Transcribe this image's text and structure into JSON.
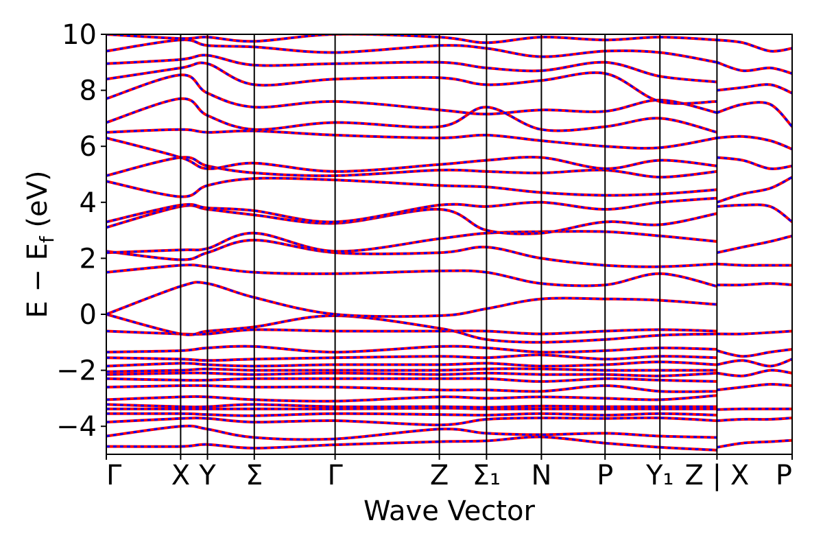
{
  "chart_data": {
    "type": "line",
    "title": "",
    "xlabel": "Wave Vector",
    "ylabel": "E − E",
    "ylabel_sub": "f",
    "ylabel_unit": " (eV)",
    "ylim": [
      -5,
      10
    ],
    "yticks": [
      -4,
      -2,
      0,
      2,
      4,
      6,
      8,
      10
    ],
    "ytick_labels": [
      "−4",
      "−2",
      "0",
      "2",
      "4",
      "6",
      "8",
      "10"
    ],
    "xlim": [
      0,
      12.5
    ],
    "kpoints": [
      {
        "label": "Γ",
        "x": 0.0
      },
      {
        "label": "X",
        "x": 1.355
      },
      {
        "label": "Y",
        "x": 1.844
      },
      {
        "label": "Σ",
        "x": 2.697
      },
      {
        "label": "Γ",
        "x": 4.17
      },
      {
        "label": "Z",
        "x": 6.07
      },
      {
        "label": "Σ₁",
        "x": 6.93
      },
      {
        "label": "N",
        "x": 7.93
      },
      {
        "label": "P",
        "x": 9.09
      },
      {
        "label": "Y₁",
        "x": 10.09
      },
      {
        "label": "Z | X",
        "x": 11.13
      },
      {
        "label": "P",
        "x": 12.5
      }
    ],
    "grid": false,
    "legend": "none",
    "colors": {
      "series_a": "#ff0000",
      "series_b": "#0000ff",
      "axes": "#000000"
    },
    "series": [
      {
        "x": [
          0,
          1.355,
          1.844,
          2.697,
          4.17,
          6.07,
          6.93,
          7.93,
          9.09,
          10.09,
          11.13
        ],
        "y": [
          -4.72,
          -4.72,
          -4.65,
          -4.78,
          -4.66,
          -4.55,
          -4.52,
          -4.38,
          -4.6,
          -4.75,
          -4.85
        ]
      },
      {
        "x": [
          0,
          1.355,
          1.844,
          2.697,
          4.17,
          6.07,
          6.93,
          7.93,
          9.09,
          10.09,
          11.13
        ],
        "y": [
          -4.35,
          -4.0,
          -4.1,
          -4.4,
          -4.45,
          -4.1,
          -4.25,
          -4.3,
          -4.25,
          -4.35,
          -4.4
        ]
      },
      {
        "x": [
          0,
          1.355,
          1.844,
          2.697,
          4.17,
          6.07,
          6.93,
          7.93,
          9.09,
          10.09,
          11.13
        ],
        "y": [
          -3.85,
          -3.72,
          -3.72,
          -3.85,
          -3.8,
          -3.95,
          -3.75,
          -3.7,
          -3.72,
          -3.7,
          -3.8
        ]
      },
      {
        "x": [
          0,
          1.355,
          1.844,
          2.697,
          4.17,
          6.07,
          6.93,
          7.93,
          9.09,
          10.09,
          11.13
        ],
        "y": [
          -3.55,
          -3.55,
          -3.58,
          -3.62,
          -3.55,
          -3.58,
          -3.6,
          -3.55,
          -3.6,
          -3.55,
          -3.6
        ]
      },
      {
        "x": [
          0,
          1.355,
          1.844,
          2.697,
          4.17,
          6.07,
          6.93,
          7.93,
          9.09,
          10.09,
          11.13
        ],
        "y": [
          -3.38,
          -3.38,
          -3.38,
          -3.38,
          -3.38,
          -3.35,
          -3.38,
          -3.38,
          -3.38,
          -3.38,
          -3.38
        ]
      },
      {
        "x": [
          0,
          1.355,
          1.844,
          2.697,
          4.17,
          6.07,
          6.93,
          7.93,
          9.09,
          10.09,
          11.13
        ],
        "y": [
          -3.22,
          -3.3,
          -3.3,
          -3.22,
          -3.3,
          -3.3,
          -3.32,
          -3.28,
          -3.3,
          -3.3,
          -3.3
        ]
      },
      {
        "x": [
          0,
          1.355,
          1.844,
          2.697,
          4.17,
          6.07,
          6.93,
          7.93,
          9.09,
          10.09,
          11.13
        ],
        "y": [
          -3.05,
          -2.95,
          -2.95,
          -3.05,
          -3.1,
          -2.95,
          -3.0,
          -2.95,
          -3.0,
          -3.05,
          -2.9
        ]
      },
      {
        "x": [
          0,
          1.355,
          1.844,
          2.697,
          4.17,
          6.07,
          6.93,
          7.93,
          9.09,
          10.09,
          11.13
        ],
        "y": [
          -2.6,
          -2.55,
          -2.55,
          -2.6,
          -2.6,
          -2.7,
          -2.7,
          -2.75,
          -2.55,
          -2.75,
          -2.75
        ]
      },
      {
        "x": [
          0,
          1.355,
          1.844,
          2.697,
          4.17,
          6.07,
          6.93,
          7.93,
          9.09,
          10.09,
          11.13
        ],
        "y": [
          -2.3,
          -2.35,
          -2.35,
          -2.3,
          -2.3,
          -2.3,
          -2.3,
          -2.4,
          -2.3,
          -2.35,
          -2.4
        ]
      },
      {
        "x": [
          0,
          1.355,
          1.844,
          2.697,
          4.17,
          6.07,
          6.93,
          7.93,
          9.09,
          10.09,
          11.13
        ],
        "y": [
          -2.15,
          -2.1,
          -2.1,
          -2.15,
          -2.1,
          -2.15,
          -2.1,
          -2.15,
          -2.15,
          -2.2,
          -2.1
        ]
      },
      {
        "x": [
          0,
          1.355,
          1.844,
          2.697,
          4.17,
          6.07,
          6.93,
          7.93,
          9.09,
          10.09,
          11.13
        ],
        "y": [
          -2.05,
          -2.0,
          -1.95,
          -2.0,
          -2.0,
          -2.0,
          -1.95,
          -1.95,
          -2.0,
          -2.0,
          -2.0
        ]
      },
      {
        "x": [
          0,
          1.355,
          1.844,
          2.697,
          4.17,
          6.07,
          6.93,
          7.93,
          9.09,
          10.09,
          11.13
        ],
        "y": [
          -1.85,
          -1.75,
          -1.8,
          -1.85,
          -1.8,
          -1.8,
          -1.75,
          -1.85,
          -1.8,
          -1.7,
          -1.8
        ]
      },
      {
        "x": [
          0,
          1.355,
          1.844,
          2.697,
          4.17,
          6.07,
          6.93,
          7.93,
          9.09,
          10.09,
          11.13
        ],
        "y": [
          -1.55,
          -1.6,
          -1.65,
          -1.6,
          -1.55,
          -1.5,
          -1.55,
          -1.45,
          -1.6,
          -1.5,
          -1.55
        ]
      },
      {
        "x": [
          0,
          1.355,
          1.844,
          2.697,
          4.17,
          6.07,
          6.93,
          7.93,
          9.09,
          10.09,
          11.13
        ],
        "y": [
          -1.35,
          -1.3,
          -1.2,
          -1.15,
          -1.35,
          -1.15,
          -1.2,
          -1.35,
          -1.3,
          -1.2,
          -1.25
        ]
      },
      {
        "x": [
          0,
          1.355,
          1.844,
          2.697,
          4.17,
          6.07,
          6.93,
          7.93,
          9.09,
          10.09,
          11.13
        ],
        "y": [
          -0.6,
          -0.7,
          -0.7,
          -0.55,
          -0.6,
          -0.6,
          -0.6,
          -0.7,
          -0.6,
          -0.55,
          -0.6
        ]
      },
      {
        "x": [
          0,
          1.355,
          1.844,
          2.697,
          4.17,
          6.07,
          6.93,
          7.93,
          9.09,
          10.09,
          11.13
        ],
        "y": [
          0.0,
          -0.7,
          -0.6,
          -0.45,
          -0.05,
          -0.5,
          -0.9,
          -1.0,
          -0.9,
          -0.75,
          -0.7
        ]
      },
      {
        "x": [
          0,
          1.355,
          1.844,
          2.697,
          4.17,
          6.07,
          6.93,
          7.93,
          9.09,
          10.09,
          11.13
        ],
        "y": [
          0.0,
          1.0,
          1.1,
          0.6,
          0.0,
          -0.05,
          0.2,
          0.55,
          0.55,
          0.5,
          0.35
        ]
      },
      {
        "x": [
          0,
          1.355,
          1.844,
          2.697,
          4.17,
          6.07,
          6.93,
          7.93,
          9.09,
          10.09,
          11.13
        ],
        "y": [
          1.5,
          1.75,
          1.7,
          1.5,
          1.45,
          1.55,
          1.5,
          1.1,
          1.05,
          1.45,
          1.0
        ]
      },
      {
        "x": [
          0,
          1.355,
          1.844,
          2.697,
          4.17,
          6.07,
          6.93,
          7.93,
          9.09,
          10.09,
          11.13
        ],
        "y": [
          2.25,
          1.95,
          2.2,
          2.65,
          2.2,
          2.2,
          2.4,
          2.0,
          1.75,
          1.7,
          1.8
        ]
      },
      {
        "x": [
          0,
          1.355,
          1.844,
          2.697,
          4.17,
          6.07,
          6.93,
          7.93,
          9.09,
          10.09,
          11.13
        ],
        "y": [
          2.2,
          2.3,
          2.35,
          2.9,
          2.25,
          2.7,
          2.9,
          2.95,
          2.95,
          2.8,
          2.6
        ]
      },
      {
        "x": [
          0,
          1.355,
          1.844,
          2.697,
          4.17,
          6.07,
          6.93,
          7.93,
          9.09,
          10.09,
          11.13
        ],
        "y": [
          3.1,
          3.85,
          3.75,
          3.55,
          3.25,
          3.75,
          3.0,
          2.9,
          3.3,
          3.2,
          3.6
        ]
      },
      {
        "x": [
          0,
          1.355,
          1.844,
          2.697,
          4.17,
          6.07,
          6.93,
          7.93,
          9.09,
          10.09,
          11.13
        ],
        "y": [
          3.3,
          3.9,
          3.8,
          3.7,
          3.3,
          3.9,
          3.85,
          4.0,
          3.75,
          4.0,
          4.15
        ]
      },
      {
        "x": [
          0,
          1.355,
          1.844,
          2.697,
          4.17,
          6.07,
          6.93,
          7.93,
          9.09,
          10.09,
          11.13
        ],
        "y": [
          4.75,
          4.2,
          4.6,
          4.85,
          4.8,
          4.6,
          4.55,
          4.35,
          4.25,
          4.3,
          4.45
        ]
      },
      {
        "x": [
          0,
          1.355,
          1.844,
          2.697,
          4.17,
          6.07,
          6.93,
          7.93,
          9.09,
          10.09,
          11.13
        ],
        "y": [
          4.95,
          5.6,
          5.3,
          5.05,
          4.95,
          5.15,
          5.1,
          5.05,
          5.15,
          4.9,
          5.1
        ]
      },
      {
        "x": [
          0,
          1.355,
          1.844,
          2.697,
          4.17,
          6.07,
          6.93,
          7.93,
          9.09,
          10.09,
          11.13
        ],
        "y": [
          6.3,
          5.6,
          5.2,
          5.4,
          5.1,
          5.35,
          5.5,
          5.6,
          5.2,
          5.5,
          5.3
        ]
      },
      {
        "x": [
          0,
          1.355,
          1.844,
          2.697,
          4.17,
          6.07,
          6.93,
          7.93,
          9.09,
          10.09,
          11.13
        ],
        "y": [
          6.5,
          6.6,
          6.5,
          6.55,
          6.4,
          6.3,
          6.4,
          6.2,
          6.0,
          5.95,
          6.3
        ]
      },
      {
        "x": [
          0,
          1.355,
          1.844,
          2.697,
          4.17,
          6.07,
          6.93,
          7.93,
          9.09,
          10.09,
          11.13
        ],
        "y": [
          6.85,
          7.7,
          7.1,
          6.6,
          6.85,
          6.7,
          7.4,
          6.6,
          6.7,
          7.0,
          6.5
        ]
      },
      {
        "x": [
          0,
          1.355,
          1.844,
          2.697,
          4.17,
          6.07,
          6.93,
          7.93,
          9.09,
          10.09,
          11.13
        ],
        "y": [
          7.7,
          8.55,
          7.9,
          7.4,
          7.6,
          7.3,
          7.15,
          7.3,
          7.25,
          7.65,
          7.2
        ]
      },
      {
        "x": [
          0,
          1.355,
          1.844,
          2.697,
          4.17,
          6.07,
          6.93,
          7.93,
          9.09,
          10.09,
          11.13
        ],
        "y": [
          8.4,
          8.8,
          8.95,
          8.2,
          8.4,
          8.45,
          8.2,
          8.35,
          8.6,
          7.6,
          7.6
        ]
      },
      {
        "x": [
          0,
          1.355,
          1.844,
          2.697,
          4.17,
          6.07,
          6.93,
          7.93,
          9.09,
          10.09,
          11.13
        ],
        "y": [
          8.95,
          9.1,
          9.25,
          8.9,
          8.95,
          9.0,
          8.8,
          8.7,
          9.0,
          8.5,
          8.3
        ]
      },
      {
        "x": [
          0,
          1.355,
          1.844,
          2.697,
          4.17,
          6.07,
          6.93,
          7.93,
          9.09,
          10.09,
          11.13
        ],
        "y": [
          9.4,
          9.8,
          9.6,
          9.55,
          9.35,
          9.6,
          9.5,
          9.2,
          9.4,
          9.35,
          9.0
        ]
      },
      {
        "x": [
          0,
          1.355,
          1.844,
          2.697,
          4.17,
          6.07,
          6.93,
          7.93,
          9.09,
          10.09,
          11.13
        ],
        "y": [
          10.0,
          9.85,
          9.9,
          9.75,
          10.0,
          9.9,
          9.7,
          9.9,
          9.8,
          9.9,
          9.8
        ]
      },
      {
        "x": [
          11.13,
          11.6,
          12.1,
          12.5
        ],
        "y": [
          -4.75,
          -4.6,
          -4.55,
          -4.5
        ]
      },
      {
        "x": [
          11.13,
          11.6,
          12.1,
          12.5
        ],
        "y": [
          -3.8,
          -3.75,
          -3.75,
          -3.7
        ]
      },
      {
        "x": [
          11.13,
          11.6,
          12.1,
          12.5
        ],
        "y": [
          -3.4,
          -3.38,
          -3.38,
          -3.38
        ]
      },
      {
        "x": [
          11.13,
          11.6,
          12.1,
          12.5
        ],
        "y": [
          -2.7,
          -2.6,
          -2.5,
          -2.55
        ]
      },
      {
        "x": [
          11.13,
          11.6,
          12.1,
          12.5
        ],
        "y": [
          -2.1,
          -2.2,
          -2.0,
          -2.1
        ]
      },
      {
        "x": [
          11.13,
          11.6,
          12.1,
          12.5
        ],
        "y": [
          -1.8,
          -1.65,
          -1.85,
          -1.6
        ]
      },
      {
        "x": [
          11.13,
          11.6,
          12.1,
          12.5
        ],
        "y": [
          -1.3,
          -1.5,
          -1.35,
          -1.25
        ]
      },
      {
        "x": [
          11.13,
          11.6,
          12.1,
          12.5
        ],
        "y": [
          -0.7,
          -0.7,
          -0.65,
          -0.6
        ]
      },
      {
        "x": [
          11.13,
          11.6,
          12.1,
          12.5
        ],
        "y": [
          1.05,
          1.05,
          1.1,
          1.05
        ]
      },
      {
        "x": [
          11.13,
          11.6,
          12.1,
          12.5
        ],
        "y": [
          1.8,
          1.75,
          1.75,
          1.75
        ]
      },
      {
        "x": [
          11.13,
          11.6,
          12.1,
          12.5
        ],
        "y": [
          2.2,
          2.4,
          2.6,
          2.8
        ]
      },
      {
        "x": [
          11.13,
          11.6,
          12.1,
          12.5
        ],
        "y": [
          3.85,
          3.9,
          3.85,
          3.3
        ]
      },
      {
        "x": [
          11.13,
          11.6,
          12.1,
          12.5
        ],
        "y": [
          4.0,
          4.3,
          4.5,
          4.9
        ]
      },
      {
        "x": [
          11.13,
          11.6,
          12.1,
          12.5
        ],
        "y": [
          5.6,
          5.5,
          5.2,
          5.3
        ]
      },
      {
        "x": [
          11.13,
          11.6,
          12.1,
          12.5
        ],
        "y": [
          6.3,
          6.35,
          6.2,
          5.9
        ]
      },
      {
        "x": [
          11.13,
          11.6,
          12.1,
          12.5
        ],
        "y": [
          7.2,
          7.5,
          7.5,
          6.7
        ]
      },
      {
        "x": [
          11.13,
          11.6,
          12.1,
          12.5
        ],
        "y": [
          8.0,
          8.1,
          8.2,
          7.9
        ]
      },
      {
        "x": [
          11.13,
          11.6,
          12.1,
          12.5
        ],
        "y": [
          9.0,
          8.7,
          8.8,
          8.6
        ]
      },
      {
        "x": [
          11.13,
          11.6,
          12.1,
          12.5
        ],
        "y": [
          9.8,
          9.7,
          9.4,
          9.5
        ]
      }
    ]
  }
}
